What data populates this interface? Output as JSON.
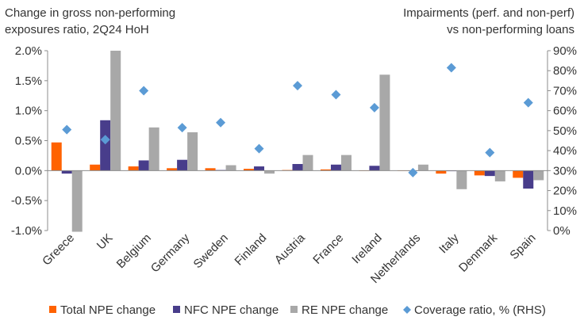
{
  "chart_data": {
    "type": "bar",
    "title_left": [
      "Change in  gross non-performing",
      "exposures ratio, 2Q24 HoH"
    ],
    "title_right": [
      "Impairments (perf. and non-perf)",
      "vs non-performing loans"
    ],
    "categories": [
      "Greece",
      "UK",
      "Belgium",
      "Germany",
      "Sweden",
      "Finland",
      "Austria",
      "France",
      "Ireland",
      "Netherlands",
      "Italy",
      "Denmark",
      "Spain"
    ],
    "y_left": {
      "min": -1.0,
      "max": 2.0,
      "ticks": [
        -1.0,
        -0.5,
        0.0,
        0.5,
        1.0,
        1.5,
        2.0
      ],
      "tick_labels": [
        "-1.0%",
        "-0.5%",
        "0.0%",
        "0.5%",
        "1.0%",
        "1.5%",
        "2.0%"
      ]
    },
    "y_right": {
      "min": 0,
      "max": 90,
      "ticks": [
        0,
        10,
        20,
        30,
        40,
        50,
        60,
        70,
        80,
        90
      ],
      "tick_labels": [
        "0%",
        "10%",
        "20%",
        "30%",
        "40%",
        "50%",
        "60%",
        "70%",
        "80%",
        "90%"
      ]
    },
    "series": [
      {
        "name": "Total NPE change",
        "color": "#FF6200",
        "values": [
          0.47,
          0.1,
          0.07,
          0.04,
          0.04,
          0.03,
          0.01,
          0.02,
          0.0,
          0.0,
          -0.05,
          -0.08,
          -0.12
        ]
      },
      {
        "name": "NFC NPE change",
        "color": "#483D8B",
        "values": [
          -0.05,
          0.84,
          0.17,
          0.18,
          0.01,
          0.07,
          0.11,
          0.1,
          0.08,
          0.0,
          -0.01,
          -0.09,
          -0.3
        ]
      },
      {
        "name": "RE NPE change",
        "color": "#A8A8A8",
        "values": [
          -1.02,
          2.0,
          0.72,
          0.64,
          0.09,
          -0.05,
          0.26,
          0.26,
          1.6,
          0.1,
          -0.31,
          -0.18,
          -0.16
        ]
      }
    ],
    "scatter": {
      "name": "Coverage ratio, % (RHS)",
      "color": "#5B9BD5",
      "values": [
        50.5,
        45.5,
        70.0,
        51.5,
        54.0,
        41.0,
        72.5,
        68.0,
        61.5,
        29.0,
        81.5,
        39.0,
        64.0
      ]
    },
    "legend_position": "bottom",
    "grid": false
  }
}
